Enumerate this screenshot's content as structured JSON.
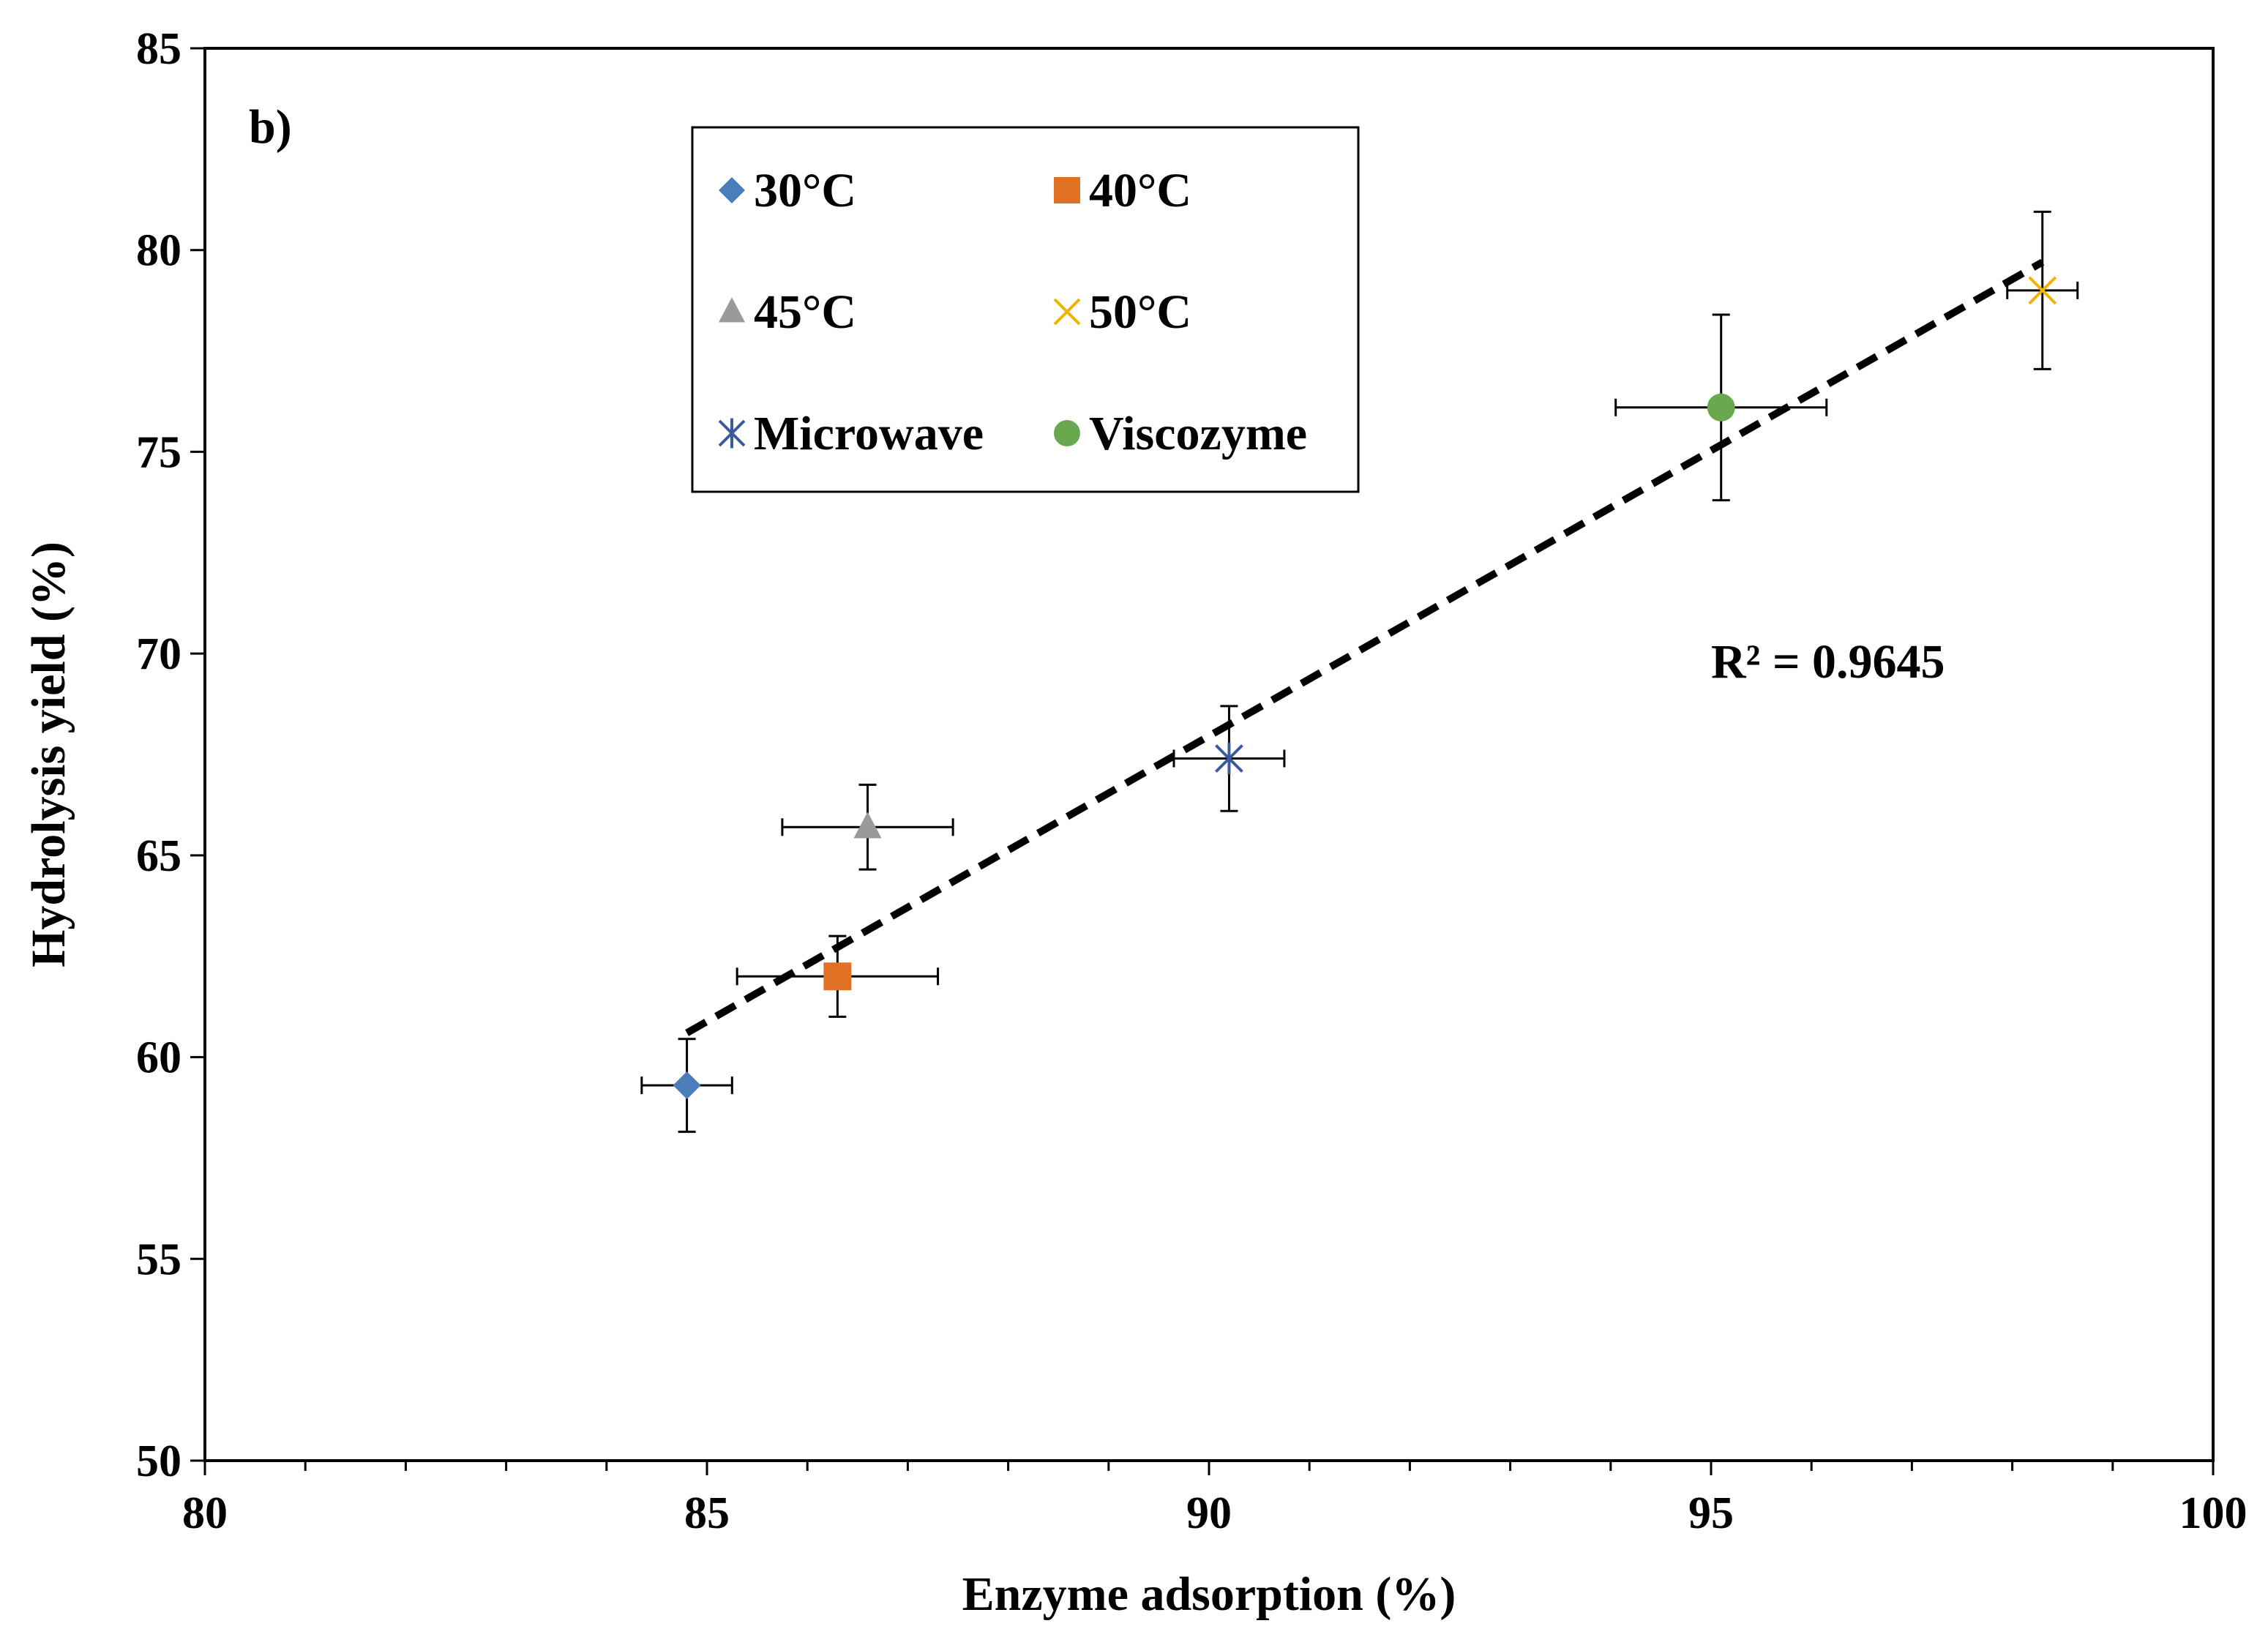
{
  "chart_data": {
    "type": "scatter",
    "title": "",
    "panel_label": "b)",
    "xlabel": "Enzyme adsorption (%)",
    "ylabel": "Hydrolysis yield (%)",
    "xlim": [
      80,
      100
    ],
    "ylim": [
      50,
      85
    ],
    "x_ticks": [
      80,
      85,
      90,
      95,
      100
    ],
    "y_ticks": [
      50,
      55,
      60,
      65,
      70,
      75,
      80,
      85
    ],
    "x_minor_step": 1,
    "grid": false,
    "legend_position": "top-center",
    "series": [
      {
        "name": "30°C",
        "marker": "diamond",
        "color": "#4a7ebb",
        "x": 84.8,
        "y": 59.3,
        "x_err": 0.45,
        "y_err": 1.15
      },
      {
        "name": "40°C",
        "marker": "square",
        "color": "#e07024",
        "x": 86.3,
        "y": 62.0,
        "x_err": 1.0,
        "y_err": 1.0
      },
      {
        "name": "45°C",
        "marker": "triangle",
        "color": "#9a9a9a",
        "x": 86.6,
        "y": 65.7,
        "x_err": 0.85,
        "y_err": 1.05
      },
      {
        "name": "50°C",
        "marker": "x",
        "color": "#f0b400",
        "x": 98.3,
        "y": 79.0,
        "x_err": 0.35,
        "y_err": 1.95
      },
      {
        "name": "Microwave",
        "marker": "asterisk",
        "color": "#3a5a9c",
        "x": 90.2,
        "y": 67.4,
        "x_err": 0.55,
        "y_err": 1.3
      },
      {
        "name": "Viscozyme",
        "marker": "circle",
        "color": "#6aa84f",
        "x": 95.1,
        "y": 76.1,
        "x_err": 1.05,
        "y_err": 2.3
      }
    ],
    "trendline": {
      "type": "linear",
      "style": "dashed",
      "x": [
        84.8,
        98.3
      ],
      "y": [
        60.6,
        79.7
      ]
    },
    "annotations": [
      {
        "text": "R² = 0.9645",
        "x": 95.0,
        "y": 69.4
      }
    ]
  }
}
